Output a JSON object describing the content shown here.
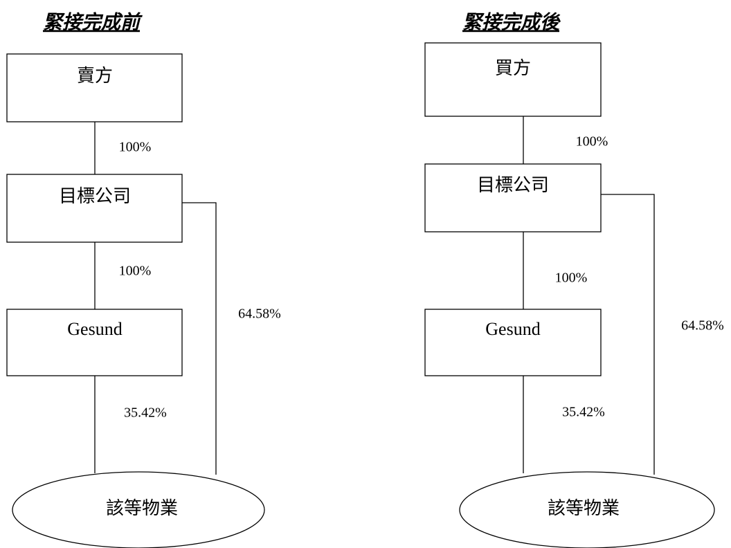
{
  "diagrams": [
    {
      "title": "緊接完成前",
      "nodes": [
        {
          "label": "賣方"
        },
        {
          "label": "目標公司"
        },
        {
          "label": "Gesund"
        },
        {
          "label": "該等物業"
        }
      ],
      "edges": [
        {
          "label": "100%"
        },
        {
          "label": "100%"
        },
        {
          "label": "35.42%"
        },
        {
          "label": "64.58%"
        }
      ]
    },
    {
      "title": "緊接完成後",
      "nodes": [
        {
          "label": "買方"
        },
        {
          "label": "目標公司"
        },
        {
          "label": "Gesund"
        },
        {
          "label": "該等物業"
        }
      ],
      "edges": [
        {
          "label": "100%"
        },
        {
          "label": "100%"
        },
        {
          "label": "35.42%"
        },
        {
          "label": "64.58%"
        }
      ]
    }
  ]
}
